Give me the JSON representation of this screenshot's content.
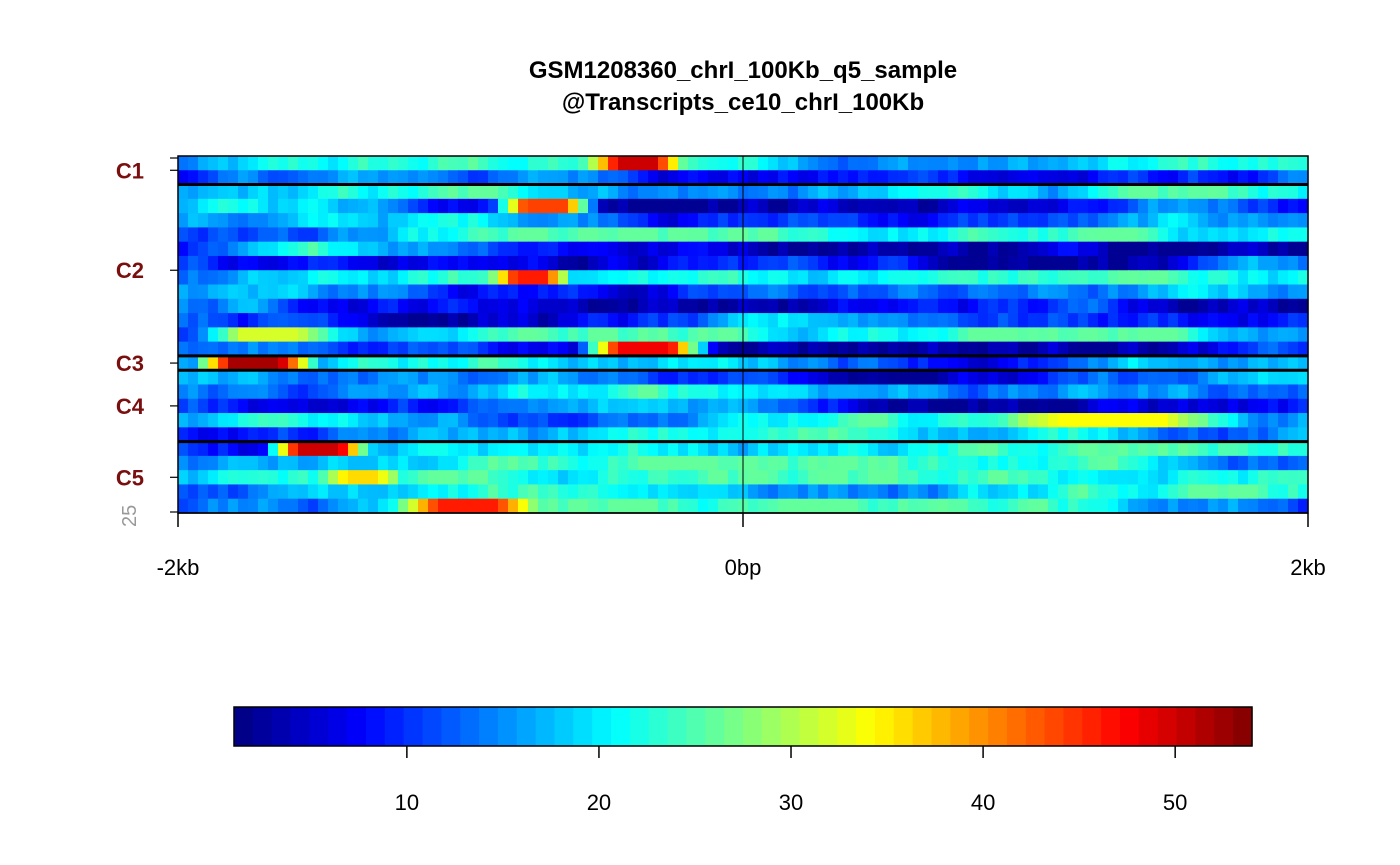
{
  "chart_data": {
    "type": "heatmap",
    "title_lines": [
      "GSM1208360_chrI_100Kb_q5_sample",
      "@Transcripts_ce10_chrI_100Kb"
    ],
    "x_tick_labels": [
      "-2kb",
      "0bp",
      "2kb"
    ],
    "x_range_bp": [
      -2000,
      2000
    ],
    "row_count_label": "25",
    "total_rows": 25,
    "clusters": [
      {
        "label": "C1",
        "rows": 2
      },
      {
        "label": "C2",
        "rows": 12
      },
      {
        "label": "C3",
        "rows": 1
      },
      {
        "label": "C4",
        "rows": 5
      },
      {
        "label": "C5",
        "rows": 5
      }
    ],
    "colorbar": {
      "min": 1,
      "max": 54,
      "tick_values": [
        10,
        20,
        30,
        40,
        50
      ],
      "tick_labels": [
        "10",
        "20",
        "30",
        "40",
        "50"
      ],
      "colormap": "jet"
    },
    "cluster_color": "#7a0f0f",
    "hotspots": [
      {
        "row": 0,
        "x_bp": [
          -550,
          -200
        ],
        "value": 50
      },
      {
        "row": 3,
        "x_bp": [
          -900,
          -500
        ],
        "value": 44
      },
      {
        "row": 8,
        "x_bp": [
          -900,
          -600
        ],
        "value": 46
      },
      {
        "row": 12,
        "x_bp": [
          -1950,
          -1400
        ],
        "value": 32
      },
      {
        "row": 13,
        "x_bp": [
          -600,
          -100
        ],
        "value": 48
      },
      {
        "row": 14,
        "x_bp": [
          -1950,
          -1500
        ],
        "value": 52
      },
      {
        "row": 18,
        "x_bp": [
          800,
          1800
        ],
        "value": 34
      },
      {
        "row": 20,
        "x_bp": [
          -1700,
          -1300
        ],
        "value": 50
      },
      {
        "row": 22,
        "x_bp": [
          -1500,
          -1200
        ],
        "value": 36
      },
      {
        "row": 24,
        "x_bp": [
          -1250,
          -700
        ],
        "value": 46
      }
    ]
  }
}
